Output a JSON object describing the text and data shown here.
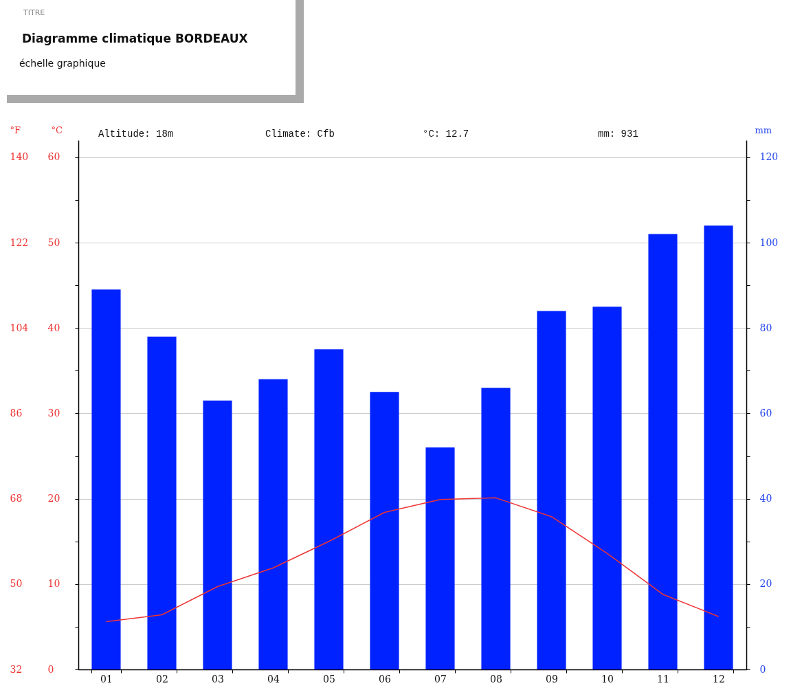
{
  "chart_data": {
    "type": "bar",
    "title": "Diagramme climatique BORDEAUX",
    "subtitle": "échelle graphique",
    "annotations": [
      "TITRE",
      "Altitude: 18m",
      "Climate: Cfb",
      "°C: 12.7",
      "mm: 931"
    ],
    "categories": [
      "01",
      "02",
      "03",
      "04",
      "05",
      "06",
      "07",
      "08",
      "09",
      "10",
      "11",
      "12"
    ],
    "series": [
      {
        "axis": "y2",
        "color": "#0022ff",
        "values": [
          89,
          78,
          63,
          68,
          75,
          65,
          52,
          66,
          84,
          85,
          102,
          104
        ]
      },
      {
        "type": "line",
        "color": "#ee3333",
        "values": [
          5.6,
          6.4,
          9.7,
          11.9,
          15.0,
          18.4,
          19.9,
          20.1,
          17.9,
          13.6,
          8.8,
          6.2
        ]
      }
    ],
    "ylabel": "°C",
    "y2label": "mm",
    "y3label": "°F",
    "ylim": [
      0,
      62
    ],
    "yticks": [
      0,
      {
        "value": 5,
        "label": null
      },
      10,
      {
        "value": 15,
        "label": null
      },
      20,
      {
        "value": 25,
        "label": null
      },
      30,
      {
        "value": 35,
        "label": null
      },
      40,
      {
        "value": 45,
        "label": null
      },
      50,
      {
        "value": 55,
        "label": null
      },
      60
    ],
    "y2lim": [
      0,
      124
    ],
    "y2ticks": [
      0,
      {
        "value": 10,
        "label": null
      },
      20,
      {
        "value": 30,
        "label": null
      },
      40,
      {
        "value": 50,
        "label": null
      },
      60,
      {
        "value": 70,
        "label": null
      },
      80,
      {
        "value": 90,
        "label": null
      },
      100,
      {
        "value": 110,
        "label": null
      },
      120
    ],
    "y3lim": [
      32,
      143.6
    ],
    "y3ticks": [
      32,
      50,
      68,
      86,
      104,
      122,
      140
    ],
    "grid": "y",
    "line_style": "solid",
    "marker": "none"
  }
}
